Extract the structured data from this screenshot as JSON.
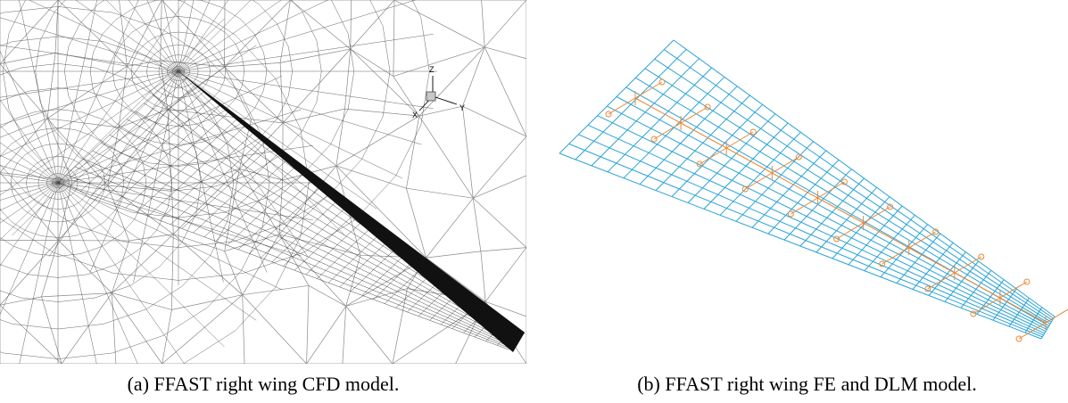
{
  "figure": {
    "panels": [
      {
        "id": "a",
        "label": "(a)",
        "caption": "FFAST right wing CFD model.",
        "view_triad": {
          "axes": [
            "Z",
            "X",
            "Y"
          ],
          "icon": "axis-triad-icon"
        }
      },
      {
        "id": "b",
        "label": "(b)",
        "caption": "FFAST right wing FE and DLM model.",
        "colors": {
          "dlm_grid": "#29a3d6",
          "fe_structure": "#e8893a"
        }
      }
    ]
  }
}
